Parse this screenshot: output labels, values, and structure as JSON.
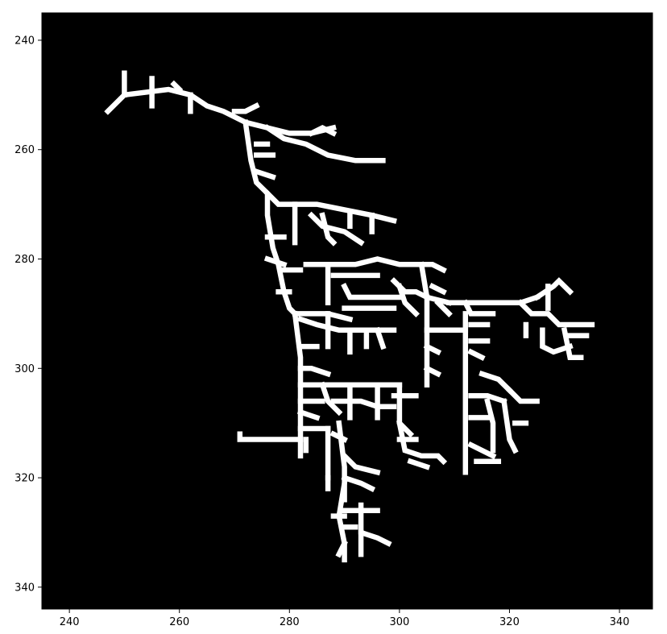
{
  "chart_data": {
    "type": "heatmap",
    "description_kind": "binary skeleton image (white branching structure on black background)",
    "title": "",
    "xlabel": "",
    "ylabel": "",
    "xlim": [
      235,
      346
    ],
    "ylim": [
      344,
      235
    ],
    "y_inverted": true,
    "x_ticks": [
      240,
      260,
      280,
      300,
      320,
      340
    ],
    "y_ticks": [
      240,
      260,
      280,
      300,
      320,
      340
    ],
    "x_tick_labels": [
      "240",
      "260",
      "280",
      "300",
      "320",
      "340"
    ],
    "y_tick_labels": [
      "240",
      "260",
      "280",
      "300",
      "320",
      "340"
    ],
    "background_color": "#000000",
    "foreground_color": "#ffffff",
    "grid": false,
    "skeleton_segments": [
      [
        [
          247,
          253
        ],
        [
          250,
          250
        ],
        [
          258,
          249
        ],
        [
          262,
          250
        ],
        [
          265,
          252
        ],
        [
          268,
          253
        ],
        [
          272,
          255
        ],
        [
          276,
          256
        ],
        [
          280,
          257
        ],
        [
          284,
          257
        ],
        [
          288,
          256
        ]
      ],
      [
        [
          250,
          246
        ],
        [
          250,
          250
        ]
      ],
      [
        [
          255,
          247
        ],
        [
          255,
          252
        ]
      ],
      [
        [
          259,
          248
        ],
        [
          260,
          249
        ]
      ],
      [
        [
          262,
          250
        ],
        [
          262,
          253
        ]
      ],
      [
        [
          270,
          253
        ],
        [
          272,
          253
        ],
        [
          274,
          252
        ]
      ],
      [
        [
          276,
          256
        ],
        [
          279,
          258
        ],
        [
          283,
          259
        ],
        [
          287,
          261
        ],
        [
          292,
          262
        ],
        [
          297,
          262
        ]
      ],
      [
        [
          284,
          257
        ],
        [
          286,
          256
        ],
        [
          288,
          257
        ]
      ],
      [
        [
          272,
          255
        ],
        [
          273,
          262
        ],
        [
          274,
          266
        ],
        [
          276,
          268
        ],
        [
          276,
          272
        ],
        [
          277,
          278
        ],
        [
          278,
          281
        ],
        [
          279,
          286
        ],
        [
          280,
          289
        ],
        [
          281,
          290
        ]
      ],
      [
        [
          274,
          259
        ],
        [
          276,
          259
        ]
      ],
      [
        [
          274,
          261
        ],
        [
          277,
          261
        ]
      ],
      [
        [
          274,
          264
        ],
        [
          277,
          265
        ]
      ],
      [
        [
          276,
          268
        ],
        [
          278,
          270
        ],
        [
          285,
          270
        ],
        [
          290,
          271
        ],
        [
          295,
          272
        ],
        [
          299,
          273
        ]
      ],
      [
        [
          281,
          270
        ],
        [
          281,
          277
        ]
      ],
      [
        [
          284,
          272
        ],
        [
          286,
          274
        ],
        [
          290,
          275
        ],
        [
          293,
          277
        ]
      ],
      [
        [
          286,
          272
        ],
        [
          287,
          276
        ],
        [
          288,
          277
        ]
      ],
      [
        [
          291,
          272
        ],
        [
          291,
          274
        ]
      ],
      [
        [
          295,
          272
        ],
        [
          295,
          275
        ]
      ],
      [
        [
          276,
          276
        ],
        [
          279,
          276
        ]
      ],
      [
        [
          276,
          280
        ],
        [
          279,
          281
        ]
      ],
      [
        [
          279,
          282
        ],
        [
          282,
          282
        ]
      ],
      [
        [
          278,
          286
        ],
        [
          280,
          286
        ]
      ],
      [
        [
          281,
          290
        ],
        [
          287,
          290
        ],
        [
          291,
          291
        ]
      ],
      [
        [
          281,
          290
        ],
        [
          282,
          298
        ],
        [
          282,
          305
        ],
        [
          282,
          312
        ],
        [
          282,
          316
        ]
      ],
      [
        [
          282,
          291
        ],
        [
          285,
          292
        ],
        [
          289,
          293
        ],
        [
          294,
          293
        ],
        [
          299,
          293
        ]
      ],
      [
        [
          287,
          290
        ],
        [
          287,
          296
        ]
      ],
      [
        [
          291,
          293
        ],
        [
          291,
          297
        ]
      ],
      [
        [
          294,
          293
        ],
        [
          294,
          296
        ]
      ],
      [
        [
          296,
          293
        ],
        [
          297,
          296
        ]
      ],
      [
        [
          282,
          296
        ],
        [
          285,
          296
        ]
      ],
      [
        [
          282,
          300
        ],
        [
          284,
          300
        ],
        [
          287,
          301
        ]
      ],
      [
        [
          282,
          303
        ],
        [
          286,
          303
        ],
        [
          291,
          303
        ],
        [
          296,
          303
        ],
        [
          300,
          303
        ]
      ],
      [
        [
          282,
          306
        ],
        [
          286,
          306
        ]
      ],
      [
        [
          286,
          303
        ],
        [
          287,
          306
        ],
        [
          289,
          308
        ]
      ],
      [
        [
          291,
          303
        ],
        [
          291,
          309
        ]
      ],
      [
        [
          282,
          308
        ],
        [
          285,
          309
        ]
      ],
      [
        [
          282,
          311
        ],
        [
          287,
          311
        ]
      ],
      [
        [
          288,
          306
        ],
        [
          293,
          306
        ],
        [
          296,
          307
        ],
        [
          299,
          307
        ]
      ],
      [
        [
          296,
          303
        ],
        [
          296,
          309
        ]
      ],
      [
        [
          300,
          303
        ],
        [
          300,
          310
        ],
        [
          302,
          312
        ]
      ],
      [
        [
          299,
          305
        ],
        [
          303,
          305
        ]
      ],
      [
        [
          271,
          312
        ],
        [
          271,
          313
        ],
        [
          276,
          313
        ],
        [
          282,
          313
        ]
      ],
      [
        [
          283,
          313
        ],
        [
          283,
          315
        ]
      ],
      [
        [
          287,
          311
        ],
        [
          287,
          320
        ]
      ],
      [
        [
          288,
          312
        ],
        [
          290,
          313
        ]
      ],
      [
        [
          289,
          310
        ],
        [
          290,
          318
        ],
        [
          290,
          324
        ]
      ],
      [
        [
          290,
          316
        ],
        [
          292,
          318
        ],
        [
          296,
          319
        ]
      ],
      [
        [
          290,
          320
        ],
        [
          293,
          321
        ],
        [
          295,
          322
        ]
      ],
      [
        [
          290,
          321
        ],
        [
          289,
          327
        ],
        [
          290,
          332
        ],
        [
          290,
          335
        ]
      ],
      [
        [
          290,
          326
        ],
        [
          293,
          326
        ],
        [
          296,
          326
        ]
      ],
      [
        [
          288,
          327
        ],
        [
          290,
          327
        ]
      ],
      [
        [
          290,
          329
        ],
        [
          292,
          329
        ]
      ],
      [
        [
          290,
          332
        ],
        [
          289,
          334
        ]
      ],
      [
        [
          293,
          325
        ],
        [
          293,
          330
        ],
        [
          296,
          331
        ],
        [
          298,
          332
        ]
      ],
      [
        [
          293,
          330
        ],
        [
          293,
          334
        ]
      ],
      [
        [
          287,
          320
        ],
        [
          287,
          322
        ]
      ],
      [
        [
          300,
          310
        ],
        [
          301,
          315
        ],
        [
          304,
          316
        ],
        [
          307,
          316
        ],
        [
          308,
          317
        ]
      ],
      [
        [
          300,
          313
        ],
        [
          303,
          313
        ]
      ],
      [
        [
          302,
          317
        ],
        [
          305,
          318
        ]
      ],
      [
        [
          283,
          281
        ],
        [
          287,
          281
        ],
        [
          292,
          281
        ],
        [
          296,
          280
        ],
        [
          300,
          281
        ],
        [
          303,
          281
        ],
        [
          306,
          281
        ],
        [
          308,
          282
        ]
      ],
      [
        [
          287,
          281
        ],
        [
          287,
          288
        ]
      ],
      [
        [
          288,
          283
        ],
        [
          292,
          283
        ],
        [
          296,
          283
        ]
      ],
      [
        [
          290,
          285
        ],
        [
          291,
          287
        ],
        [
          295,
          287
        ],
        [
          300,
          287
        ]
      ],
      [
        [
          290,
          289
        ],
        [
          295,
          289
        ],
        [
          299,
          289
        ]
      ],
      [
        [
          299,
          284
        ],
        [
          301,
          286
        ],
        [
          303,
          286
        ],
        [
          305,
          287
        ],
        [
          309,
          288
        ]
      ],
      [
        [
          304,
          281
        ],
        [
          305,
          287
        ]
      ],
      [
        [
          306,
          285
        ],
        [
          308,
          286
        ]
      ],
      [
        [
          300,
          285
        ],
        [
          301,
          288
        ],
        [
          303,
          290
        ]
      ],
      [
        [
          305,
          287
        ],
        [
          305,
          297
        ],
        [
          305,
          303
        ]
      ],
      [
        [
          305,
          293
        ],
        [
          309,
          293
        ],
        [
          312,
          293
        ]
      ],
      [
        [
          305,
          296
        ],
        [
          307,
          297
        ]
      ],
      [
        [
          305,
          300
        ],
        [
          307,
          301
        ]
      ],
      [
        [
          309,
          288
        ],
        [
          313,
          288
        ],
        [
          317,
          288
        ],
        [
          322,
          288
        ],
        [
          325,
          287
        ]
      ],
      [
        [
          307,
          288
        ],
        [
          309,
          290
        ]
      ],
      [
        [
          312,
          288
        ],
        [
          313,
          290
        ],
        [
          317,
          290
        ]
      ],
      [
        [
          312,
          290
        ],
        [
          312,
          295
        ],
        [
          312,
          300
        ],
        [
          312,
          305
        ],
        [
          312,
          310
        ],
        [
          312,
          315
        ],
        [
          312,
          319
        ]
      ],
      [
        [
          313,
          292
        ],
        [
          316,
          292
        ]
      ],
      [
        [
          313,
          295
        ],
        [
          316,
          295
        ]
      ],
      [
        [
          313,
          297
        ],
        [
          315,
          298
        ]
      ],
      [
        [
          315,
          301
        ],
        [
          318,
          302
        ],
        [
          320,
          304
        ]
      ],
      [
        [
          313,
          305
        ],
        [
          316,
          305
        ],
        [
          319,
          306
        ]
      ],
      [
        [
          313,
          309
        ],
        [
          316,
          309
        ]
      ],
      [
        [
          313,
          314
        ],
        [
          317,
          316
        ]
      ],
      [
        [
          316,
          306
        ],
        [
          317,
          310
        ],
        [
          317,
          315
        ]
      ],
      [
        [
          320,
          304
        ],
        [
          322,
          306
        ],
        [
          325,
          306
        ]
      ],
      [
        [
          319,
          306
        ],
        [
          320,
          313
        ],
        [
          321,
          315
        ]
      ],
      [
        [
          321,
          310
        ],
        [
          323,
          310
        ]
      ],
      [
        [
          314,
          317
        ],
        [
          318,
          317
        ]
      ],
      [
        [
          322,
          288
        ],
        [
          324,
          290
        ],
        [
          327,
          290
        ],
        [
          329,
          292
        ],
        [
          332,
          292
        ],
        [
          335,
          292
        ]
      ],
      [
        [
          325,
          287
        ],
        [
          328,
          285
        ],
        [
          329,
          284
        ],
        [
          331,
          286
        ]
      ],
      [
        [
          327,
          285
        ],
        [
          327,
          289
        ]
      ],
      [
        [
          323,
          292
        ],
        [
          323,
          294
        ]
      ],
      [
        [
          326,
          293
        ],
        [
          326,
          296
        ],
        [
          328,
          297
        ],
        [
          331,
          296
        ]
      ],
      [
        [
          330,
          293
        ],
        [
          331,
          298
        ],
        [
          333,
          298
        ]
      ],
      [
        [
          331,
          294
        ],
        [
          334,
          294
        ]
      ]
    ]
  }
}
